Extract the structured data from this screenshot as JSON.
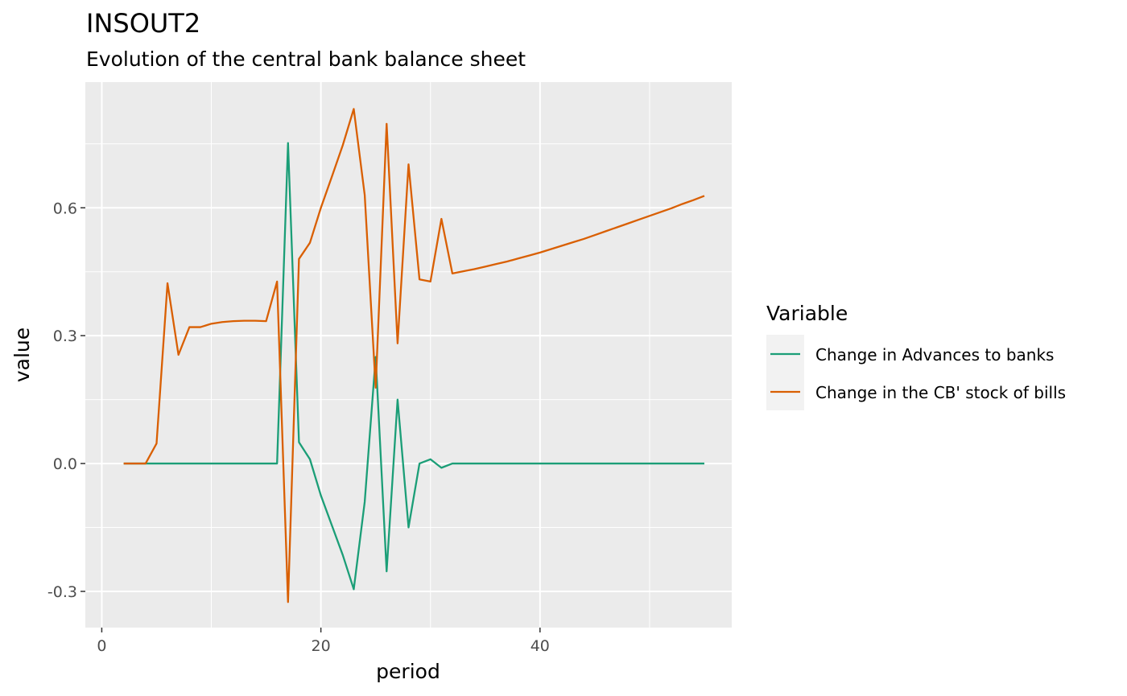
{
  "chart_data": {
    "type": "line",
    "title": "INSOUT2",
    "subtitle": "Evolution of the central bank balance sheet",
    "xlabel": "period",
    "ylabel": "value",
    "xlim": [
      -1.5,
      57.5
    ],
    "ylim": [
      -0.385,
      0.895
    ],
    "x_ticks": [
      0,
      20,
      40
    ],
    "x_tick_labels": [
      "0",
      "20",
      "40"
    ],
    "x_minor_ticks": [
      10,
      30,
      50
    ],
    "y_ticks": [
      -0.3,
      0.0,
      0.3,
      0.6
    ],
    "y_tick_labels": [
      "-0.3",
      "0.0",
      "0.3",
      "0.6"
    ],
    "y_minor_ticks": [
      -0.15,
      0.15,
      0.45,
      0.75
    ],
    "grid": true,
    "legend": {
      "title": "Variable",
      "position": "right"
    },
    "x": [
      2,
      3,
      4,
      5,
      6,
      7,
      8,
      9,
      10,
      11,
      12,
      13,
      14,
      15,
      16,
      17,
      18,
      19,
      20,
      21,
      22,
      23,
      24,
      25,
      26,
      27,
      28,
      29,
      30,
      31,
      32,
      33,
      34,
      35,
      36,
      37,
      38,
      39,
      40,
      41,
      42,
      43,
      44,
      45,
      46,
      47,
      48,
      49,
      50,
      51,
      52,
      53,
      54,
      55
    ],
    "series": [
      {
        "name": "Change in Advances to banks",
        "color": "#1b9e77",
        "values": [
          0,
          0,
          0,
          0,
          0,
          0,
          0,
          0,
          0,
          0,
          0,
          0,
          0,
          0,
          0,
          0.752,
          0.05,
          0.01,
          -0.075,
          -0.145,
          -0.215,
          -0.295,
          -0.09,
          0.25,
          -0.253,
          0.15,
          -0.15,
          0,
          0.01,
          -0.01,
          0,
          0,
          0,
          0,
          0,
          0,
          0,
          0,
          0,
          0,
          0,
          0,
          0,
          0,
          0,
          0,
          0,
          0,
          0,
          0,
          0,
          0,
          0,
          0
        ]
      },
      {
        "name": "Change in the CB' stock of bills",
        "color": "#d95f02",
        "values": [
          0,
          0,
          0,
          0.047,
          0.423,
          0.255,
          0.32,
          0.32,
          0.328,
          0.332,
          0.334,
          0.335,
          0.335,
          0.334,
          0.427,
          -0.325,
          0.48,
          0.518,
          0.6,
          0.673,
          0.747,
          0.832,
          0.63,
          0.178,
          0.797,
          0.282,
          0.702,
          0.432,
          0.427,
          0.574,
          0.446,
          0.451,
          0.456,
          0.462,
          0.468,
          0.474,
          0.481,
          0.488,
          0.495,
          0.503,
          0.511,
          0.519,
          0.527,
          0.536,
          0.545,
          0.554,
          0.563,
          0.572,
          0.581,
          0.59,
          0.599,
          0.609,
          0.618,
          0.628
        ]
      }
    ]
  }
}
